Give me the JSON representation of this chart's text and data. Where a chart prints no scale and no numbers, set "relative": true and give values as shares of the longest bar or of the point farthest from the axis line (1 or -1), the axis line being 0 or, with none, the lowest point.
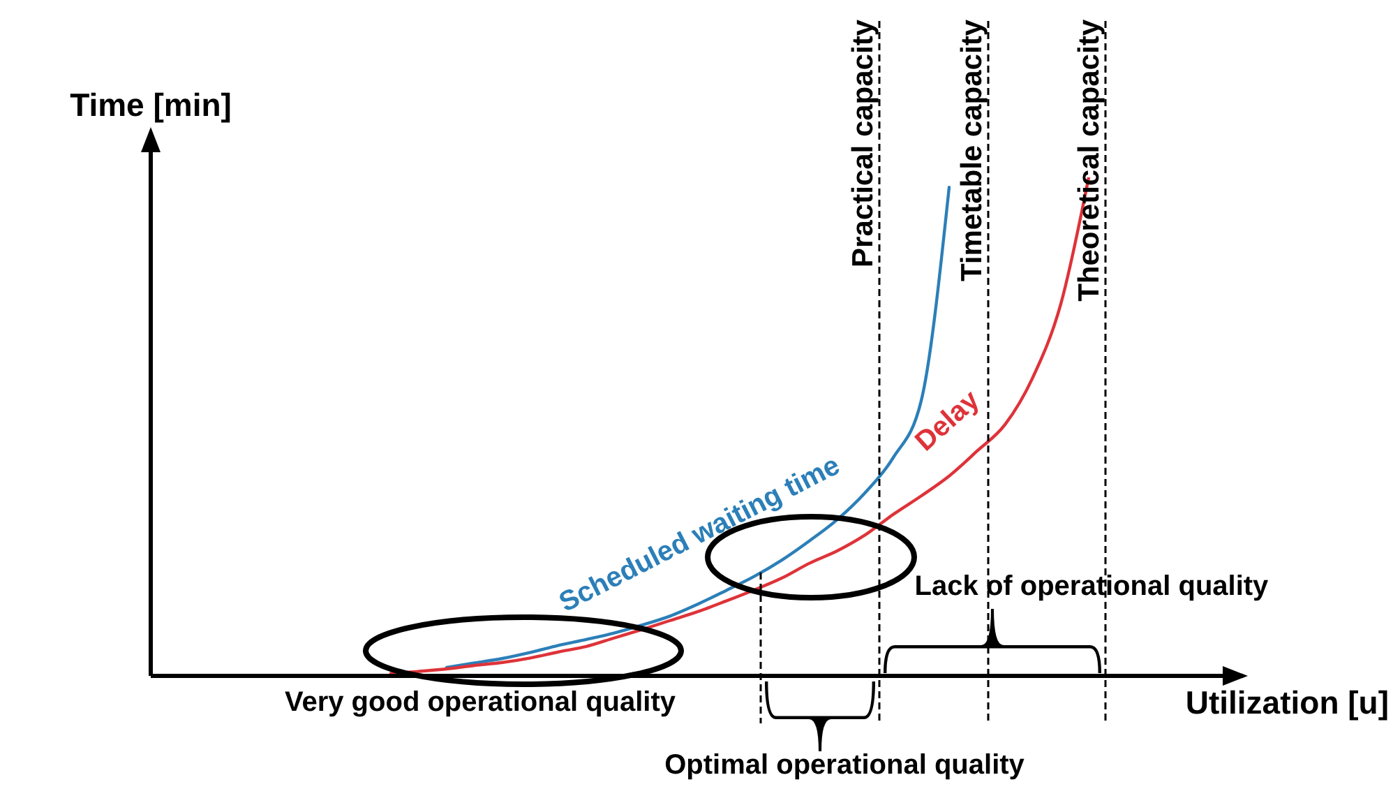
{
  "chart_data": {
    "type": "line",
    "xlabel": "Utilization [u]",
    "ylabel": "Time [min]",
    "relative": true,
    "legend": false,
    "grid": false,
    "marker": "none",
    "line_style": "solid",
    "categories": [
      null,
      null,
      null,
      null,
      null,
      null,
      null,
      null,
      null,
      null,
      null,
      null,
      null,
      null,
      null,
      null,
      null,
      null,
      null,
      null,
      null,
      null,
      null,
      null,
      null,
      null
    ],
    "series": [
      {
        "name": "Scheduled waiting time",
        "color": "#2c7fb8",
        "values": [
          null,
          null,
          0.017,
          0.026,
          0.035,
          0.047,
          0.061,
          0.073,
          0.086,
          0.102,
          0.12,
          0.144,
          0.171,
          0.199,
          0.232,
          0.271,
          0.314,
          0.368,
          0.438,
          0.552,
          0.98,
          null,
          null,
          null,
          null,
          null
        ]
      },
      {
        "name": "Delay",
        "color": "#de3339",
        "values": [
          0.005,
          0.009,
          0.014,
          0.021,
          0.027,
          0.036,
          0.048,
          0.059,
          0.076,
          0.093,
          0.111,
          0.129,
          0.15,
          0.172,
          0.196,
          0.226,
          0.251,
          0.283,
          0.324,
          0.361,
          0.401,
          0.451,
          0.504,
          0.599,
          0.746,
          1
        ]
      }
    ],
    "annotations": [
      "Practical capacity",
      "Timetable capacity",
      "Theoretical capacity",
      "Lack of operational quality",
      "Very good operational quality",
      "Optimal operational quality"
    ]
  }
}
